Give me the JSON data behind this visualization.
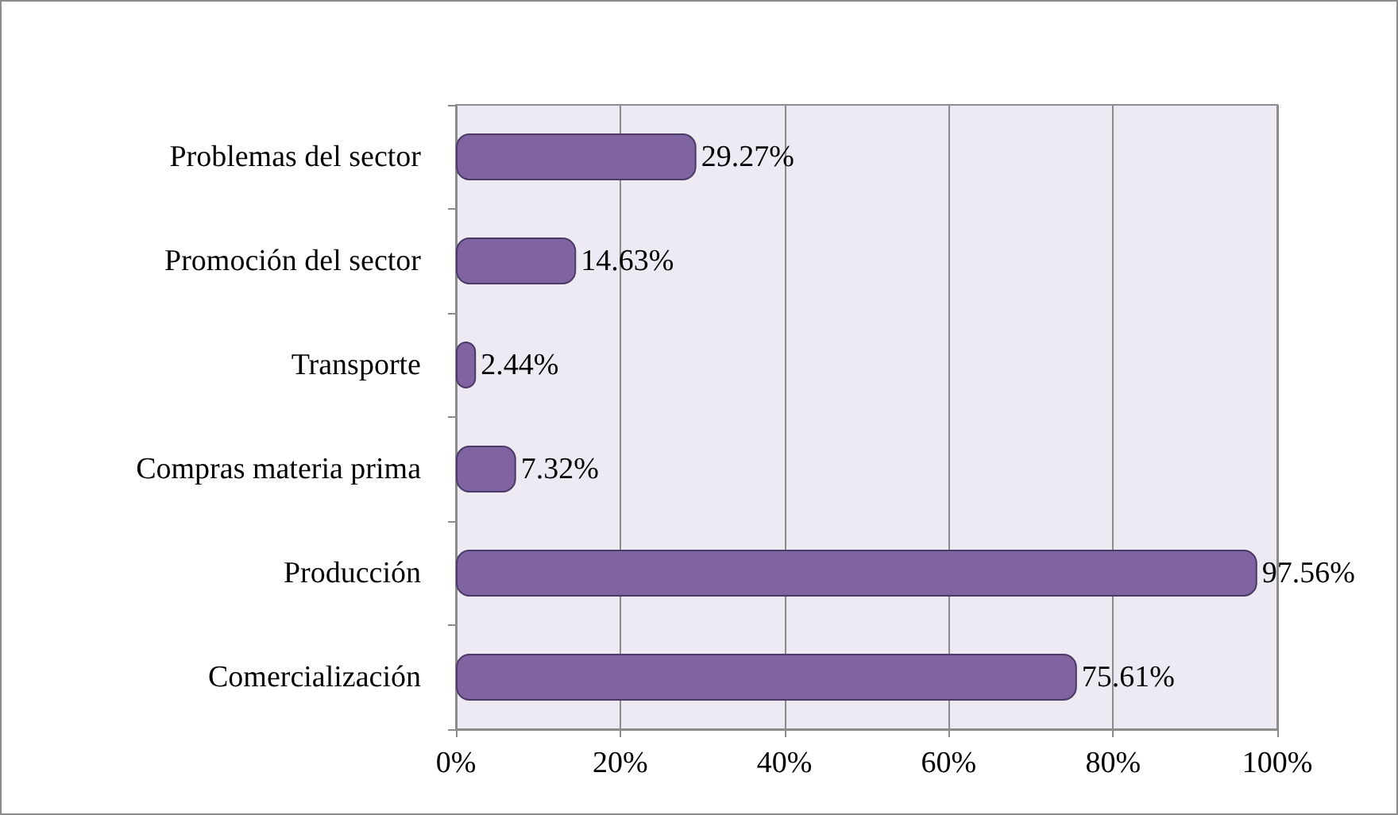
{
  "chart_data": {
    "type": "bar",
    "orientation": "horizontal",
    "categories": [
      "Problemas del sector",
      "Promoción del sector",
      "Transporte",
      "Compras materia prima",
      "Producción",
      "Comercialización"
    ],
    "values": [
      29.27,
      14.63,
      2.44,
      7.32,
      97.56,
      75.61
    ],
    "value_labels": [
      "29.27%",
      "14.63%",
      "2.44%",
      "7.32%",
      "97.56%",
      "75.61%"
    ],
    "color": "#8064a2",
    "xlim": [
      0,
      100
    ],
    "xticks": [
      {
        "value": 0,
        "label": "0%"
      },
      {
        "value": 20,
        "label": "20%"
      },
      {
        "value": 40,
        "label": "40%"
      },
      {
        "value": 60,
        "label": "60%"
      },
      {
        "value": 80,
        "label": "80%"
      },
      {
        "value": 100,
        "label": "100%"
      }
    ],
    "grid": "x"
  }
}
